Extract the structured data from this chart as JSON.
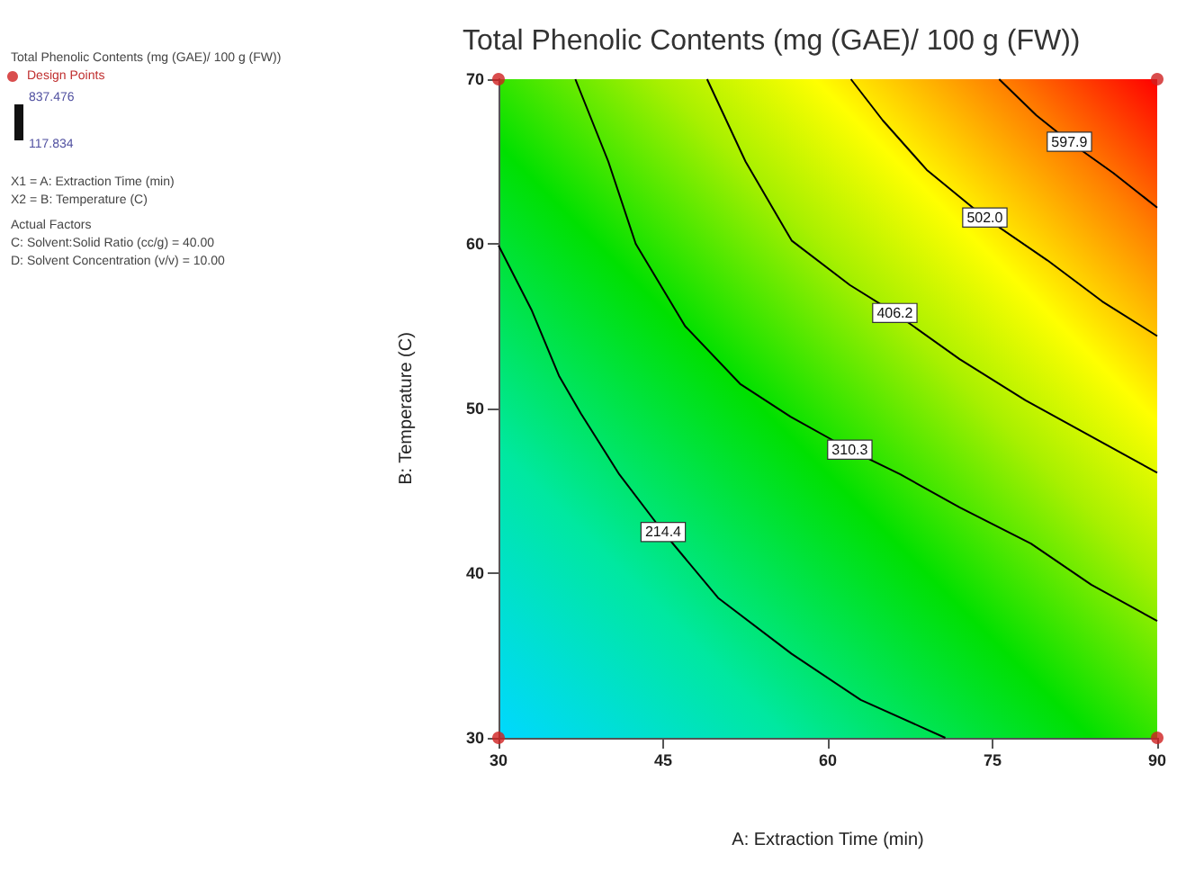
{
  "chart_data": {
    "type": "line",
    "title": "Total Phenolic Contents (mg (GAE)/ 100 g (FW))",
    "xlabel": "A: Extraction Time (min)",
    "ylabel": "B: Temperature (C)",
    "legend_title": "Total Phenolic Contents (mg (GAE)/ 100 g (FW))",
    "annotations": [
      "837.476",
      "117.834",
      "X1 = A: Extraction Time (min)",
      "X2 = B: Temperature (C)",
      "Actual Factors",
      "C: Solvent:Solid Ratio (cc/g) = 40.00",
      "D: Solvent Concentration (v/v) = 10.00"
    ],
    "xlim": [
      30,
      90
    ],
    "ylim": [
      30,
      70
    ],
    "xticks": [
      30,
      45,
      60,
      75,
      90
    ],
    "yticks": [
      30,
      40,
      50,
      60,
      70
    ],
    "legend": "top left",
    "series": [
      {
        "name": "214.4",
        "color": "#000000",
        "x": [
          30,
          33,
          35.5,
          37.5,
          41,
          45,
          50,
          56.7,
          63,
          70.7
        ],
        "values": [
          59.9,
          56,
          52,
          49.7,
          46,
          42.5,
          38.5,
          35.1,
          32.3,
          30
        ]
      },
      {
        "name": "310.3",
        "color": "#000000",
        "x": [
          37,
          40,
          42.5,
          47,
          52,
          56.6,
          62,
          66.6,
          72,
          78.5,
          84,
          90
        ],
        "values": [
          70,
          65,
          60,
          55,
          51.5,
          49.5,
          47.5,
          46,
          44,
          41.8,
          39.3,
          37.1
        ]
      },
      {
        "name": "406.2",
        "color": "#000000",
        "x": [
          49,
          52.5,
          56.7,
          62,
          66.1,
          72,
          78,
          84,
          90
        ],
        "values": [
          70,
          65,
          60.2,
          57.5,
          55.8,
          53,
          50.5,
          48.3,
          46.1
        ]
      },
      {
        "name": "502.0",
        "color": "#000000",
        "x": [
          62.1,
          65,
          69,
          74.3,
          80,
          85,
          90
        ],
        "values": [
          70,
          67.5,
          64.5,
          61.6,
          59,
          56.5,
          54.4
        ]
      },
      {
        "name": "597.9",
        "color": "#000000",
        "x": [
          75.6,
          79,
          82,
          86,
          90
        ],
        "values": [
          70,
          67.8,
          66.2,
          64.3,
          62.2
        ]
      },
      {
        "type": "scatter",
        "name": "Design Points",
        "color": "#d02020",
        "marker": "circle",
        "x": [
          30,
          30,
          90,
          90
        ],
        "values": [
          30,
          70,
          30,
          70
        ]
      }
    ]
  }
}
